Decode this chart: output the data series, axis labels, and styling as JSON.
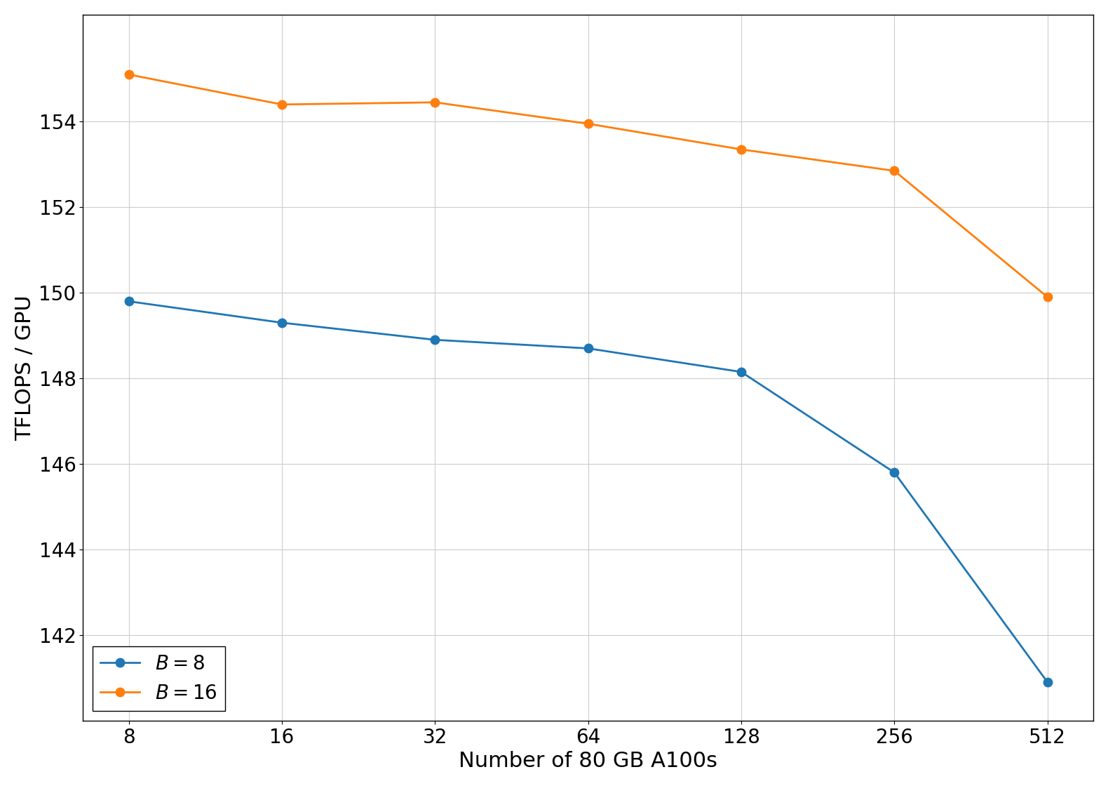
{
  "x": [
    8,
    16,
    32,
    64,
    128,
    256,
    512
  ],
  "b8_y": [
    149.8,
    149.3,
    148.9,
    148.7,
    148.15,
    145.8,
    140.9
  ],
  "b16_y": [
    155.1,
    154.4,
    154.45,
    153.95,
    153.35,
    152.85,
    149.9
  ],
  "b8_label": "$B = 8$",
  "b16_label": "$B = 16$",
  "b8_color": "#1f77b4",
  "b16_color": "#ff7f0e",
  "xlabel": "Number of 80 GB A100s",
  "ylabel": "TFLOPS / GPU",
  "xticks": [
    8,
    16,
    32,
    64,
    128,
    256,
    512
  ],
  "ylim": [
    140.0,
    156.5
  ],
  "yticks": [
    142,
    144,
    146,
    148,
    150,
    152,
    154
  ],
  "legend_loc": "lower left",
  "xlabel_fontsize": 22,
  "ylabel_fontsize": 22,
  "tick_fontsize": 20,
  "legend_fontsize": 20,
  "line_width": 2.0,
  "marker": "o",
  "marker_size": 9,
  "plot_bg_color": "#ffffff",
  "fig_bg_color": "#ffffff",
  "grid_color": "#cccccc",
  "spine_color": "#000000"
}
